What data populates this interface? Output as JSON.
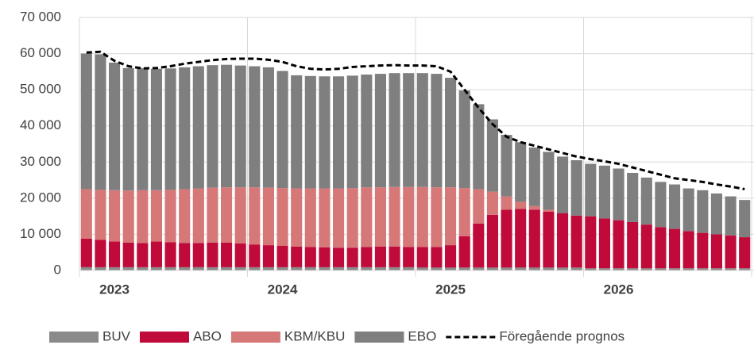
{
  "chart_data": {
    "type": "stacked_bar",
    "categories": [
      null,
      null,
      "2023",
      null,
      null,
      null,
      null,
      null,
      null,
      null,
      null,
      null,
      null,
      null,
      "2024",
      null,
      null,
      null,
      null,
      null,
      null,
      null,
      null,
      null,
      null,
      null,
      "2025",
      null,
      null,
      null,
      null,
      null,
      null,
      null,
      null,
      null,
      null,
      null,
      "2026",
      null,
      null,
      null,
      null,
      null,
      null,
      null,
      null,
      null
    ],
    "ylim": [
      0,
      70000
    ],
    "yticks": [
      0,
      {
        "value": 10000,
        "label": "10 000"
      },
      {
        "value": 20000,
        "label": "20 000"
      },
      {
        "value": 30000,
        "label": "30 000"
      },
      {
        "value": 40000,
        "label": "40 000"
      },
      {
        "value": 50000,
        "label": "50 000"
      },
      {
        "value": 60000,
        "label": "60 000"
      },
      {
        "value": 70000,
        "label": "70 000"
      }
    ],
    "grid": true,
    "legend": "bottom",
    "series": [
      {
        "name": "BUV",
        "color": "#8a8a8a",
        "values": [
          900,
          900,
          900,
          900,
          900,
          900,
          900,
          900,
          900,
          900,
          900,
          900,
          900,
          900,
          900,
          900,
          900,
          900,
          900,
          900,
          900,
          900,
          900,
          900,
          800,
          800,
          800,
          800,
          800,
          800,
          800,
          800,
          800,
          800,
          800,
          800,
          600,
          600,
          600,
          600,
          600,
          600,
          600,
          600,
          600,
          600,
          600,
          600
        ]
      },
      {
        "name": "ABO",
        "color": "#c00a3a",
        "values": [
          7900,
          7600,
          7100,
          6800,
          6700,
          7100,
          6900,
          6700,
          6700,
          6800,
          6800,
          6600,
          6300,
          6100,
          5900,
          5700,
          5600,
          5500,
          5400,
          5400,
          5600,
          5700,
          5700,
          5600,
          5700,
          5700,
          6200,
          8700,
          12200,
          14600,
          16000,
          16200,
          16000,
          15500,
          15000,
          14400,
          14400,
          13800,
          13300,
          12800,
          12100,
          11400,
          10900,
          10300,
          9800,
          9400,
          9100,
          8600
        ]
      },
      {
        "name": "KBM/KBU",
        "color": "#d67878",
        "values": [
          13700,
          13800,
          14200,
          14400,
          14600,
          14200,
          14500,
          14900,
          15100,
          15200,
          15300,
          15500,
          15800,
          15900,
          16000,
          16100,
          16200,
          16300,
          16400,
          16500,
          16500,
          16400,
          16500,
          16600,
          16600,
          16500,
          16000,
          13300,
          9500,
          6400,
          3700,
          2000,
          1000,
          500,
          0,
          0,
          0,
          0,
          0,
          0,
          0,
          0,
          0,
          0,
          0,
          0,
          0,
          0
        ]
      },
      {
        "name": "EBO",
        "color": "#7f7f7f",
        "values": [
          37500,
          37500,
          35300,
          33900,
          33800,
          33600,
          33600,
          33700,
          33800,
          33900,
          33900,
          33700,
          33500,
          33300,
          32400,
          31300,
          31100,
          31000,
          31000,
          31100,
          31200,
          31400,
          31500,
          31500,
          31500,
          31400,
          30300,
          27000,
          23500,
          20000,
          17000,
          16500,
          16200,
          16000,
          15700,
          15300,
          14500,
          14600,
          14300,
          13600,
          13000,
          12500,
          12300,
          11800,
          11800,
          11300,
          10800,
          10300
        ]
      },
      {
        "name": "Föregående prognos",
        "color": "#000000",
        "kind": "line",
        "values": [
          60300,
          60500,
          58000,
          56500,
          55900,
          56000,
          56500,
          57200,
          57700,
          58200,
          58500,
          58600,
          58600,
          58300,
          57700,
          56500,
          55800,
          55600,
          55800,
          56300,
          56500,
          56700,
          56800,
          56700,
          56700,
          56500,
          55000,
          50000,
          45000,
          40500,
          37000,
          35500,
          34500,
          33500,
          32500,
          31500,
          30800,
          30200,
          29500,
          28500,
          27500,
          26500,
          25500,
          25000,
          24500,
          23800,
          23200,
          22500
        ]
      }
    ]
  }
}
